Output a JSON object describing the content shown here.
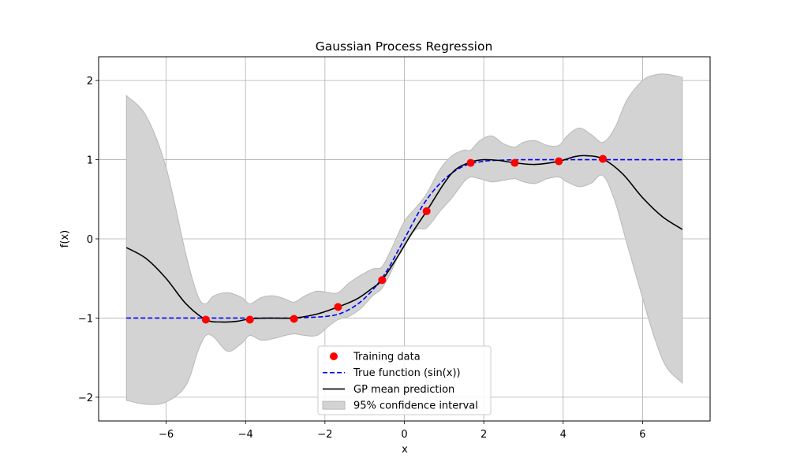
{
  "chart_data": {
    "type": "line",
    "title": "Gaussian Process Regression",
    "xlabel": "x",
    "ylabel": "f(x)",
    "xlim": [
      -7.7,
      7.7
    ],
    "ylim": [
      -2.3,
      2.3
    ],
    "xticks": [
      -6,
      -4,
      -2,
      0,
      2,
      4,
      6
    ],
    "xtick_labels": [
      "−6",
      "−4",
      "−2",
      "0",
      "2",
      "4",
      "6"
    ],
    "yticks": [
      -2,
      -1,
      0,
      1,
      2
    ],
    "ytick_labels": [
      "−2",
      "−1",
      "0",
      "1",
      "2"
    ],
    "grid": true,
    "legend_position": "lower center",
    "colors": {
      "training": "#ff0000",
      "true_function": "#0000ff",
      "mean": "#000000",
      "ci_fill": "#d3d3d3",
      "ci_edge": "#b9b9b9",
      "grid": "#b0b0b0"
    },
    "legend": [
      {
        "label": "Training data",
        "key": "training",
        "marker": "dot"
      },
      {
        "label": "True function (sin(x))",
        "key": "true_function",
        "marker": "dashed"
      },
      {
        "label": "GP mean prediction",
        "key": "mean",
        "marker": "line"
      },
      {
        "label": "95% confidence interval",
        "key": "ci",
        "marker": "patch"
      }
    ],
    "training_data": {
      "x": [
        -5.0,
        -3.89,
        -2.78,
        -1.67,
        -0.56,
        0.56,
        1.67,
        2.78,
        3.89,
        5.0
      ],
      "y": [
        -1.02,
        -1.02,
        -1.01,
        -0.86,
        -0.52,
        0.35,
        0.96,
        0.96,
        0.98,
        1.01
      ]
    },
    "true_function": {
      "x": [
        -7.0,
        -5.0,
        -4.0,
        -3.0,
        -2.0,
        -1.5,
        -1.0,
        -0.5,
        0.0,
        0.5,
        1.0,
        1.5,
        2.0,
        2.5,
        3.0,
        4.0,
        5.0,
        7.0
      ],
      "y": [
        -1.0,
        -1.0,
        -1.0,
        -1.0,
        -0.98,
        -0.92,
        -0.75,
        -0.45,
        0.0,
        0.45,
        0.75,
        0.92,
        0.98,
        0.995,
        1.0,
        1.0,
        1.0,
        1.0
      ]
    },
    "gp_mean": {
      "x": [
        -7.0,
        -6.5,
        -6.0,
        -5.5,
        -5.0,
        -4.6,
        -4.2,
        -3.89,
        -3.4,
        -2.78,
        -2.2,
        -1.67,
        -1.2,
        -0.8,
        -0.56,
        -0.2,
        0.2,
        0.56,
        1.0,
        1.3,
        1.67,
        2.0,
        2.4,
        2.78,
        3.3,
        3.89,
        4.3,
        4.6,
        5.0,
        5.5,
        6.0,
        6.5,
        7.0
      ],
      "y": [
        -0.11,
        -0.25,
        -0.5,
        -0.82,
        -1.02,
        -1.05,
        -1.04,
        -1.01,
        -1.0,
        -1.0,
        -0.95,
        -0.86,
        -0.76,
        -0.62,
        -0.52,
        -0.25,
        0.08,
        0.35,
        0.7,
        0.88,
        0.97,
        1.0,
        0.99,
        0.96,
        0.94,
        0.98,
        1.04,
        1.05,
        1.01,
        0.82,
        0.52,
        0.28,
        0.12
      ]
    },
    "confidence_interval": {
      "x": [
        -7.0,
        -6.5,
        -6.0,
        -5.5,
        -5.2,
        -5.0,
        -4.8,
        -4.45,
        -4.1,
        -3.89,
        -3.6,
        -3.3,
        -3.0,
        -2.78,
        -2.5,
        -2.2,
        -1.9,
        -1.67,
        -1.4,
        -1.1,
        -0.8,
        -0.56,
        -0.3,
        0.0,
        0.3,
        0.56,
        0.9,
        1.2,
        1.5,
        1.67,
        1.9,
        2.2,
        2.5,
        2.78,
        3.0,
        3.3,
        3.6,
        3.89,
        4.1,
        4.4,
        4.7,
        5.0,
        5.3,
        5.6,
        6.0,
        6.3,
        6.6,
        7.0
      ],
      "upper": [
        1.81,
        1.55,
        0.9,
        -0.2,
        -0.72,
        -0.82,
        -0.72,
        -0.68,
        -0.74,
        -0.82,
        -0.74,
        -0.72,
        -0.76,
        -0.8,
        -0.72,
        -0.66,
        -0.68,
        -0.68,
        -0.56,
        -0.46,
        -0.38,
        -0.35,
        -0.1,
        0.22,
        0.4,
        0.57,
        0.88,
        1.05,
        1.12,
        1.12,
        1.24,
        1.3,
        1.2,
        1.16,
        1.22,
        1.24,
        1.18,
        1.18,
        1.3,
        1.4,
        1.32,
        1.22,
        1.4,
        1.75,
        2.0,
        2.07,
        2.08,
        2.04
      ],
      "lower": [
        -2.04,
        -2.09,
        -2.06,
        -1.85,
        -1.42,
        -1.22,
        -1.24,
        -1.42,
        -1.32,
        -1.22,
        -1.28,
        -1.26,
        -1.22,
        -1.2,
        -1.22,
        -1.22,
        -1.1,
        -1.02,
        -0.98,
        -0.88,
        -0.72,
        -0.62,
        -0.38,
        -0.05,
        0.12,
        0.14,
        0.35,
        0.52,
        0.72,
        0.78,
        0.76,
        0.72,
        0.74,
        0.76,
        0.72,
        0.7,
        0.76,
        0.78,
        0.72,
        0.66,
        0.7,
        0.8,
        0.48,
        -0.05,
        -0.75,
        -1.25,
        -1.62,
        -1.82
      ]
    }
  }
}
